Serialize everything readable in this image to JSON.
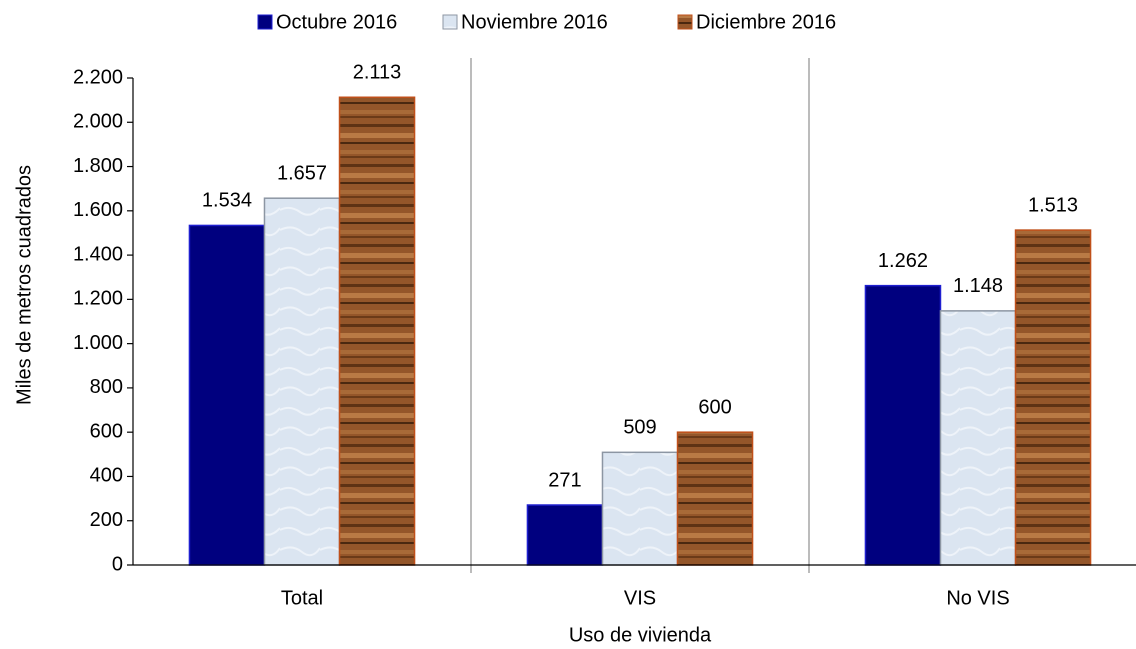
{
  "chart_data": {
    "type": "bar",
    "categories": [
      "Total",
      "VIS",
      "No VIS"
    ],
    "series": [
      {
        "name": "Octubre 2016",
        "color": "#00007f",
        "values": [
          1534,
          271,
          1262
        ],
        "value_labels": [
          "1.534",
          "271",
          "1.262"
        ]
      },
      {
        "name": "Noviembre 2016",
        "color": "#dbe5f1",
        "values": [
          1657,
          509,
          1148
        ],
        "value_labels": [
          "1.657",
          "509",
          "1.148"
        ]
      },
      {
        "name": "Diciembre 2016",
        "color": "#94562a",
        "values": [
          2113,
          600,
          1513
        ],
        "value_labels": [
          "2.113",
          "600",
          "1.513"
        ]
      }
    ],
    "ylabel": "Miles de metros cuadrados",
    "xlabel": "Uso de vivienda",
    "ylim": [
      0,
      2200
    ],
    "yticks": [
      0,
      200,
      400,
      600,
      800,
      {
        "value": 1000,
        "label": "1.000"
      },
      {
        "value": 1200,
        "label": "1.200"
      },
      {
        "value": 1400,
        "label": "1.400"
      },
      {
        "value": 1600,
        "label": "1.600"
      },
      {
        "value": 1800,
        "label": "1.800"
      },
      {
        "value": 2000,
        "label": "2.000"
      },
      {
        "value": 2200,
        "label": "2.200"
      }
    ],
    "grid": false
  }
}
